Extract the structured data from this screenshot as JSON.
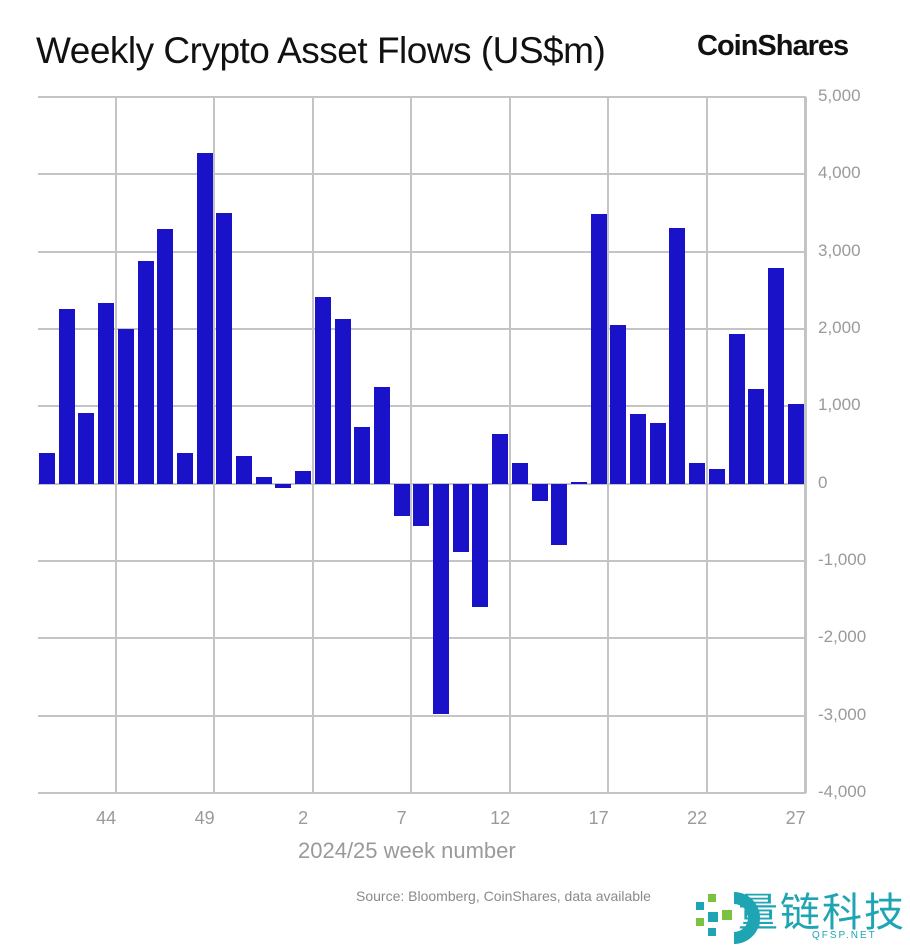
{
  "header": {
    "title": "Weekly Crypto Asset Flows (US$m)",
    "brand": "CoinShares"
  },
  "footer": {
    "source": "Source: Bloomberg, CoinShares, data available",
    "watermark": "量链科技",
    "watermark_sub": "QFSP.NET"
  },
  "colors": {
    "bar": "#1a12c9",
    "grid": "#c4c4c4",
    "axis_text": "#9a9a9a"
  },
  "chart_data": {
    "type": "bar",
    "title": "Weekly Crypto Asset Flows (US$m)",
    "xlabel": "2024/25 week number",
    "ylabel": "US$m",
    "ylim": [
      -4000,
      5000
    ],
    "yticks": [
      "5,000",
      "4,000",
      "3,000",
      "2,000",
      "1,000",
      "0",
      "-1,000",
      "-2,000",
      "-3,000",
      "-4,000"
    ],
    "xticks": [
      "44",
      "49",
      "2",
      "7",
      "12",
      "17",
      "22",
      "27"
    ],
    "grid": true,
    "legend": null,
    "categories": [
      "41",
      "42",
      "43",
      "44",
      "45",
      "46",
      "47",
      "48",
      "49",
      "50",
      "51",
      "52",
      "1",
      "2",
      "3",
      "4",
      "5",
      "6",
      "7",
      "8",
      "9",
      "10",
      "11",
      "12",
      "13",
      "14",
      "15",
      "16",
      "17",
      "18",
      "19",
      "20",
      "21",
      "22",
      "23",
      "24",
      "25",
      "26",
      "27"
    ],
    "values": [
      400,
      2260,
      920,
      2330,
      2000,
      2880,
      3290,
      400,
      4270,
      3500,
      360,
      80,
      -60,
      170,
      2410,
      2130,
      730,
      1250,
      -420,
      -550,
      -2980,
      -880,
      -1600,
      640,
      270,
      -220,
      -790,
      20,
      3490,
      2050,
      900,
      780,
      3310,
      270,
      190,
      1940,
      1230,
      2790,
      1030
    ]
  }
}
